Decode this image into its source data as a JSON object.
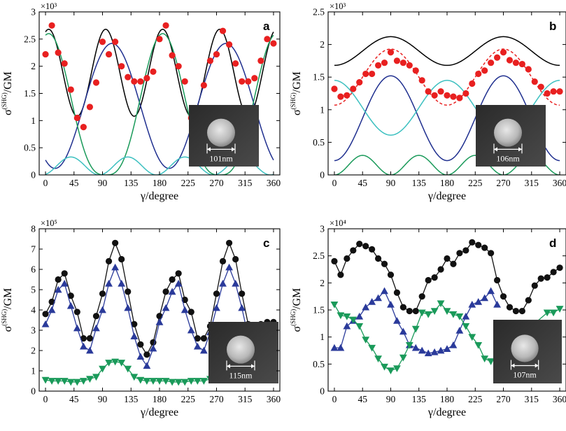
{
  "chart_data": [
    {
      "type": "line",
      "panel_label": "a",
      "exponent_label": "×10³",
      "xlabel": "γ/degree",
      "ylabel": "σ(SHG)/GM",
      "ylabel_main": "σ",
      "ylabel_sup": "(SHG)",
      "ylabel_tail": "/GM",
      "xlim": [
        -10,
        370
      ],
      "ylim": [
        0,
        3
      ],
      "xticks": [
        0,
        45,
        90,
        135,
        180,
        225,
        270,
        315,
        360
      ],
      "yticks": [
        0,
        0.5,
        1,
        1.5,
        2,
        2.5,
        3
      ],
      "ytick_labels": [
        "0",
        "0.5",
        "1",
        "1.5",
        "2",
        "2.5",
        "3"
      ],
      "scale_bar_label": "101nm",
      "series": [
        {
          "kind": "sinusoid",
          "color": "#000000",
          "mean": 1.88,
          "amp": 0.8,
          "period": 90,
          "phase": 5,
          "style": "solid",
          "range": [
            0,
            360
          ]
        },
        {
          "kind": "sinusoid2",
          "color": "#1f2f8f",
          "mean": 1.27,
          "amp": 1.15,
          "period": 180,
          "phase": 105,
          "style": "solid",
          "range": [
            0,
            360
          ]
        },
        {
          "kind": "sinusoidPow",
          "color": "#1a9a5a",
          "amp": 2.6,
          "power": 3,
          "period": 180,
          "phase": 5,
          "offset": 0,
          "style": "solid",
          "range": [
            0,
            360
          ]
        },
        {
          "kind": "sinusoidPow",
          "color": "#3cc0c0",
          "amp": 0.33,
          "power": 2,
          "period": 90,
          "phase": 40,
          "offset": 0,
          "style": "solid",
          "range": [
            0,
            360
          ]
        },
        {
          "kind": "points",
          "marker": "circle",
          "color": "#e82020",
          "x": [
            0,
            10,
            20,
            30,
            40,
            50,
            60,
            70,
            80,
            90,
            100,
            110,
            120,
            130,
            140,
            150,
            160,
            170,
            180,
            190,
            200,
            210,
            220,
            230,
            240,
            250,
            260,
            270,
            280,
            290,
            300,
            310,
            320,
            330,
            340,
            350,
            360
          ],
          "y": [
            2.22,
            2.75,
            2.25,
            2.05,
            1.57,
            1.05,
            0.88,
            1.25,
            1.7,
            2.45,
            2.22,
            2.45,
            2.0,
            1.8,
            1.72,
            1.72,
            1.78,
            1.9,
            2.5,
            2.75,
            2.2,
            2.0,
            1.72,
            1.05,
            1.22,
            1.65,
            2.1,
            2.22,
            2.65,
            2.4,
            2.05,
            1.72,
            1.72,
            1.78,
            2.1,
            2.5,
            2.42
          ]
        }
      ]
    },
    {
      "type": "line",
      "panel_label": "b",
      "exponent_label": "×10³",
      "xlabel": "γ/degree",
      "ylabel": "σ(SHG)/GM",
      "ylabel_main": "σ",
      "ylabel_sup": "(SHG)",
      "ylabel_tail": "/GM",
      "xlim": [
        -10,
        370
      ],
      "ylim": [
        0,
        2.5
      ],
      "xticks": [
        0,
        45,
        90,
        135,
        180,
        225,
        270,
        315,
        360
      ],
      "yticks": [
        0,
        0.5,
        1,
        1.5,
        2,
        2.5
      ],
      "ytick_labels": [
        "0",
        "0.5",
        "1",
        "1.5",
        "2",
        "2.5"
      ],
      "scale_bar_label": "106nm",
      "series": [
        {
          "kind": "sinusoid2",
          "color": "#000000",
          "mean": 1.9,
          "amp": 0.22,
          "period": 180,
          "phase": 90,
          "style": "solid",
          "range": [
            0,
            360
          ]
        },
        {
          "kind": "sinusoid2",
          "color": "#e82020",
          "mean": 1.5,
          "amp": 0.43,
          "period": 180,
          "phase": 90,
          "style": "dashed",
          "range": [
            0,
            360
          ]
        },
        {
          "kind": "sinusoid2",
          "color": "#1f2f8f",
          "mean": 0.87,
          "amp": 0.65,
          "period": 180,
          "phase": 90,
          "style": "solid",
          "range": [
            0,
            360
          ]
        },
        {
          "kind": "sinusoid2",
          "color": "#3cc0c0",
          "mean": 1.03,
          "amp": 0.42,
          "period": 180,
          "phase": 0,
          "style": "solid",
          "range": [
            0,
            360
          ]
        },
        {
          "kind": "sinusoidPow",
          "color": "#1a9a5a",
          "amp": 0.3,
          "power": 2,
          "period": 90,
          "phase": 45,
          "offset": 0,
          "style": "solid",
          "range": [
            0,
            360
          ]
        },
        {
          "kind": "points",
          "marker": "circle",
          "color": "#e82020",
          "x": [
            0,
            10,
            20,
            30,
            40,
            50,
            60,
            70,
            80,
            90,
            100,
            110,
            120,
            130,
            140,
            150,
            160,
            170,
            180,
            190,
            200,
            210,
            220,
            230,
            240,
            250,
            260,
            270,
            280,
            290,
            300,
            310,
            320,
            330,
            340,
            350,
            360
          ],
          "y": [
            1.32,
            1.2,
            1.22,
            1.32,
            1.42,
            1.55,
            1.55,
            1.68,
            1.72,
            1.88,
            1.75,
            1.72,
            1.68,
            1.6,
            1.45,
            1.28,
            1.22,
            1.28,
            1.22,
            1.2,
            1.18,
            1.25,
            1.4,
            1.55,
            1.6,
            1.72,
            1.8,
            1.88,
            1.76,
            1.72,
            1.7,
            1.62,
            1.43,
            1.35,
            1.25,
            1.28,
            1.28
          ]
        }
      ]
    },
    {
      "type": "line",
      "panel_label": "c",
      "exponent_label": "×10⁵",
      "xlabel": "γ/degree",
      "ylabel": "σ(SHG)/GM",
      "ylabel_main": "σ",
      "ylabel_sup": "(SHG)",
      "ylabel_tail": "/GM",
      "xlim": [
        -10,
        370
      ],
      "ylim": [
        0,
        8
      ],
      "xticks": [
        0,
        45,
        90,
        135,
        180,
        225,
        270,
        315,
        360
      ],
      "yticks": [
        0,
        1,
        2,
        3,
        4,
        5,
        6,
        7,
        8
      ],
      "ytick_labels": [
        "0",
        "1",
        "2",
        "3",
        "4",
        "5",
        "6",
        "7",
        "8"
      ],
      "scale_bar_label": "115nm",
      "series": [
        {
          "kind": "points",
          "marker": "circle",
          "color": "#111111",
          "connect": true,
          "x": [
            0,
            10,
            20,
            30,
            40,
            50,
            60,
            70,
            80,
            90,
            100,
            110,
            120,
            130,
            140,
            150,
            160,
            170,
            180,
            190,
            200,
            210,
            220,
            230,
            240,
            250,
            260,
            270,
            280,
            290,
            300,
            310,
            320,
            330,
            340,
            350,
            360
          ],
          "y": [
            3.8,
            4.4,
            5.5,
            5.8,
            4.7,
            3.9,
            2.6,
            2.6,
            3.7,
            4.8,
            6.4,
            7.3,
            6.5,
            4.9,
            3.3,
            2.3,
            1.8,
            2.4,
            3.7,
            4.9,
            5.5,
            5.8,
            4.5,
            3.9,
            2.6,
            2.6,
            3.2,
            4.8,
            6.4,
            7.3,
            6.5,
            4.8,
            3.3,
            3.2,
            3.3,
            3.4,
            3.4
          ]
        },
        {
          "kind": "points",
          "marker": "triangle-up",
          "color": "#2a3a9a",
          "connect": true,
          "x": [
            0,
            10,
            20,
            30,
            40,
            50,
            60,
            70,
            80,
            90,
            100,
            110,
            120,
            130,
            140,
            150,
            160,
            170,
            180,
            190,
            200,
            210,
            220,
            230,
            240,
            250,
            260,
            270,
            280,
            290,
            300,
            310,
            320,
            330,
            340
          ],
          "y": [
            3.3,
            4.0,
            5.0,
            5.3,
            4.2,
            3.1,
            2.2,
            2.0,
            3.1,
            4.0,
            5.3,
            6.1,
            5.3,
            4.1,
            2.7,
            1.7,
            1.25,
            2.1,
            3.4,
            4.1,
            4.9,
            5.3,
            4.0,
            3.0,
            2.2,
            2.0,
            2.9,
            4.1,
            5.3,
            6.1,
            5.3,
            4.1,
            2.7,
            2.2,
            2.8
          ]
        },
        {
          "kind": "points",
          "marker": "triangle-down",
          "color": "#1a9a5a",
          "connect": true,
          "x": [
            0,
            10,
            20,
            30,
            40,
            50,
            60,
            70,
            80,
            90,
            100,
            110,
            120,
            130,
            140,
            150,
            160,
            170,
            180,
            190,
            200,
            210,
            220,
            230,
            240,
            250,
            260,
            270
          ],
          "y": [
            0.55,
            0.5,
            0.5,
            0.5,
            0.45,
            0.45,
            0.5,
            0.6,
            0.7,
            1.1,
            1.4,
            1.45,
            1.4,
            1.1,
            0.7,
            0.55,
            0.5,
            0.5,
            0.5,
            0.5,
            0.45,
            0.45,
            0.45,
            0.5,
            0.5,
            0.5,
            0.6,
            0.7
          ]
        }
      ]
    },
    {
      "type": "line",
      "panel_label": "d",
      "exponent_label": "×10⁴",
      "xlabel": "γ/degree",
      "ylabel": "σ(SHG)/GM",
      "ylabel_main": "σ",
      "ylabel_sup": "(SHG)",
      "ylabel_tail": "/GM",
      "xlim": [
        -10,
        370
      ],
      "ylim": [
        0,
        3
      ],
      "xticks": [
        0,
        45,
        90,
        135,
        180,
        225,
        270,
        315,
        360
      ],
      "yticks": [
        0,
        0.5,
        1,
        1.5,
        2,
        2.5,
        3
      ],
      "ytick_labels": [
        "0",
        "0.5",
        "1",
        "1.5",
        "2",
        "2.5",
        "3"
      ],
      "scale_bar_label": "107nm",
      "series": [
        {
          "kind": "points",
          "marker": "circle",
          "color": "#111111",
          "connect": true,
          "x": [
            0,
            10,
            20,
            30,
            40,
            50,
            60,
            70,
            80,
            90,
            100,
            110,
            120,
            130,
            140,
            150,
            160,
            170,
            180,
            190,
            200,
            210,
            220,
            230,
            240,
            250,
            260,
            270,
            280,
            290,
            300,
            310,
            320,
            330,
            340,
            350,
            360
          ],
          "y": [
            2.4,
            2.15,
            2.45,
            2.6,
            2.72,
            2.68,
            2.62,
            2.45,
            2.35,
            2.15,
            1.82,
            1.55,
            1.48,
            1.48,
            1.75,
            2.05,
            2.1,
            2.25,
            2.45,
            2.35,
            2.55,
            2.6,
            2.75,
            2.7,
            2.65,
            2.55,
            2.05,
            1.75,
            1.55,
            1.48,
            1.48,
            1.68,
            1.95,
            2.08,
            2.1,
            2.2,
            2.28
          ]
        },
        {
          "kind": "points",
          "marker": "triangle-up",
          "color": "#2a3a9a",
          "connect": true,
          "x": [
            0,
            10,
            20,
            30,
            40,
            50,
            60,
            70,
            80,
            90,
            100,
            110,
            120,
            130,
            140,
            150,
            160,
            170,
            180,
            190,
            200,
            210,
            220,
            230,
            240,
            250,
            260
          ],
          "y": [
            0.8,
            0.8,
            1.2,
            1.3,
            1.38,
            1.55,
            1.65,
            1.72,
            1.85,
            1.6,
            1.3,
            1.1,
            0.85,
            0.8,
            0.75,
            0.7,
            0.72,
            0.75,
            0.78,
            0.85,
            1.12,
            1.38,
            1.6,
            1.65,
            1.72,
            1.85,
            1.6
          ]
        },
        {
          "kind": "points",
          "marker": "triangle-down",
          "color": "#1a9a5a",
          "connect": true,
          "x": [
            0,
            10,
            20,
            30,
            40,
            50,
            60,
            70,
            80,
            90,
            100,
            110,
            120,
            130,
            140,
            150,
            160,
            170,
            180,
            190,
            200,
            210,
            220,
            230,
            240,
            250,
            340,
            350,
            360
          ],
          "y": [
            1.6,
            1.4,
            1.38,
            1.32,
            1.2,
            0.95,
            0.8,
            0.6,
            0.45,
            0.38,
            0.42,
            0.62,
            0.85,
            1.15,
            1.45,
            1.42,
            1.48,
            1.62,
            1.48,
            1.42,
            1.38,
            1.2,
            1.0,
            0.85,
            0.6,
            0.55,
            1.45,
            1.45,
            1.52
          ]
        }
      ]
    }
  ]
}
